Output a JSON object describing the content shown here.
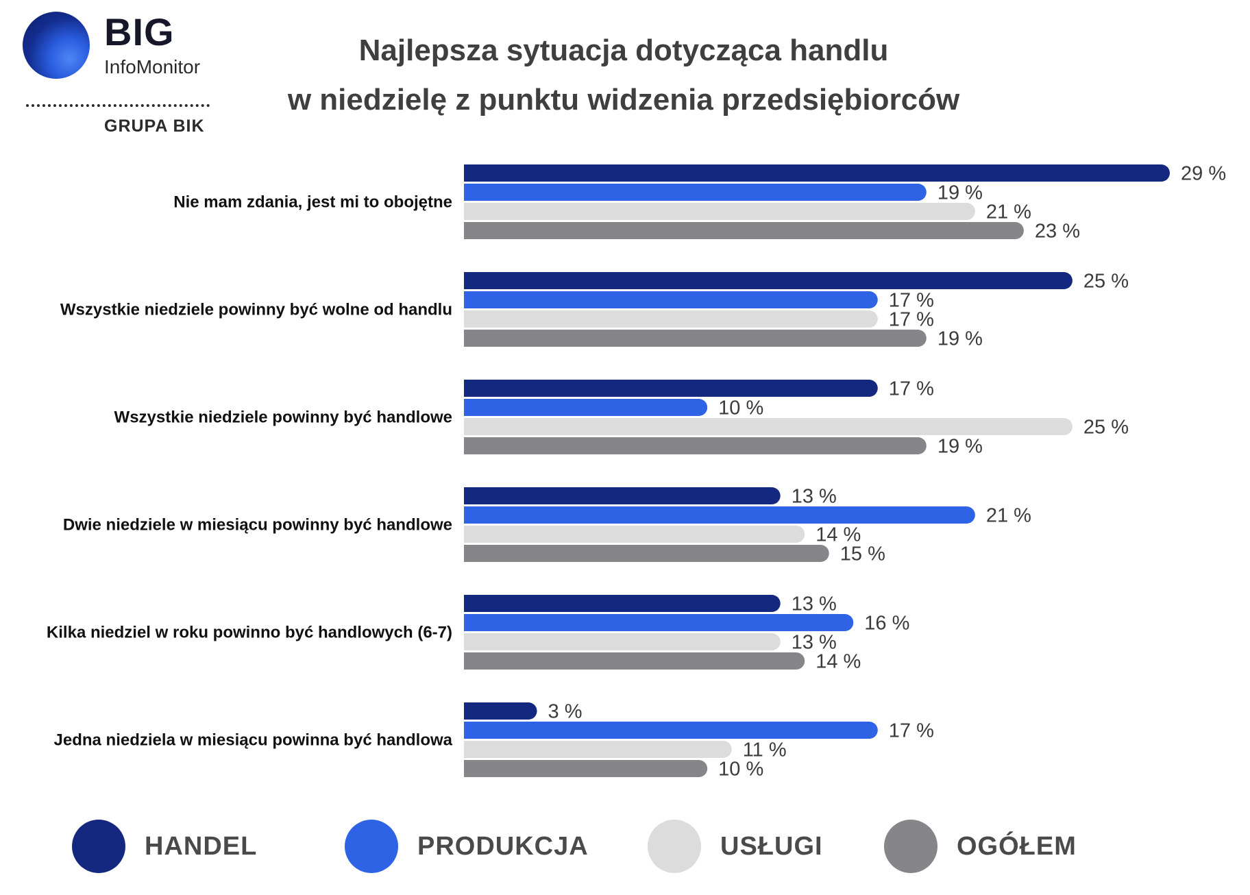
{
  "logo": {
    "big": "BIG",
    "sub": "InfoMonitor",
    "group": "GRUPA BIK"
  },
  "title": {
    "line1": "Najlepsza sytuacja dotycząca handlu",
    "line2": "w niedzielę z punktu widzenia przedsiębiorców"
  },
  "colors": {
    "HANDEL": "#14287f",
    "PRODUKCJA": "#2e63e6",
    "USŁUGI": "#dcdcdc",
    "OGÓŁEM": "#86868a"
  },
  "chart_data": {
    "type": "bar",
    "orientation": "horizontal",
    "value_suffix": " %",
    "xlim": [
      0,
      29
    ],
    "grid": false,
    "legend_position": "bottom",
    "categories": [
      "Nie mam zdania, jest mi to obojętne",
      "Wszystkie niedziele powinny być wolne od handlu",
      "Wszystkie niedziele powinny być handlowe",
      "Dwie niedziele w miesiącu powinny być handlowe",
      "Kilka niedziel w roku powinno być handlowych (6-7)",
      "Jedna niedziela w miesiącu powinna być handlowa"
    ],
    "series": [
      {
        "name": "HANDEL",
        "values": [
          29,
          25,
          17,
          13,
          13,
          3
        ]
      },
      {
        "name": "PRODUKCJA",
        "values": [
          19,
          17,
          10,
          21,
          16,
          17
        ]
      },
      {
        "name": "USŁUGI",
        "values": [
          21,
          17,
          25,
          14,
          13,
          11
        ]
      },
      {
        "name": "OGÓŁEM",
        "values": [
          23,
          19,
          19,
          15,
          14,
          10
        ]
      }
    ]
  }
}
